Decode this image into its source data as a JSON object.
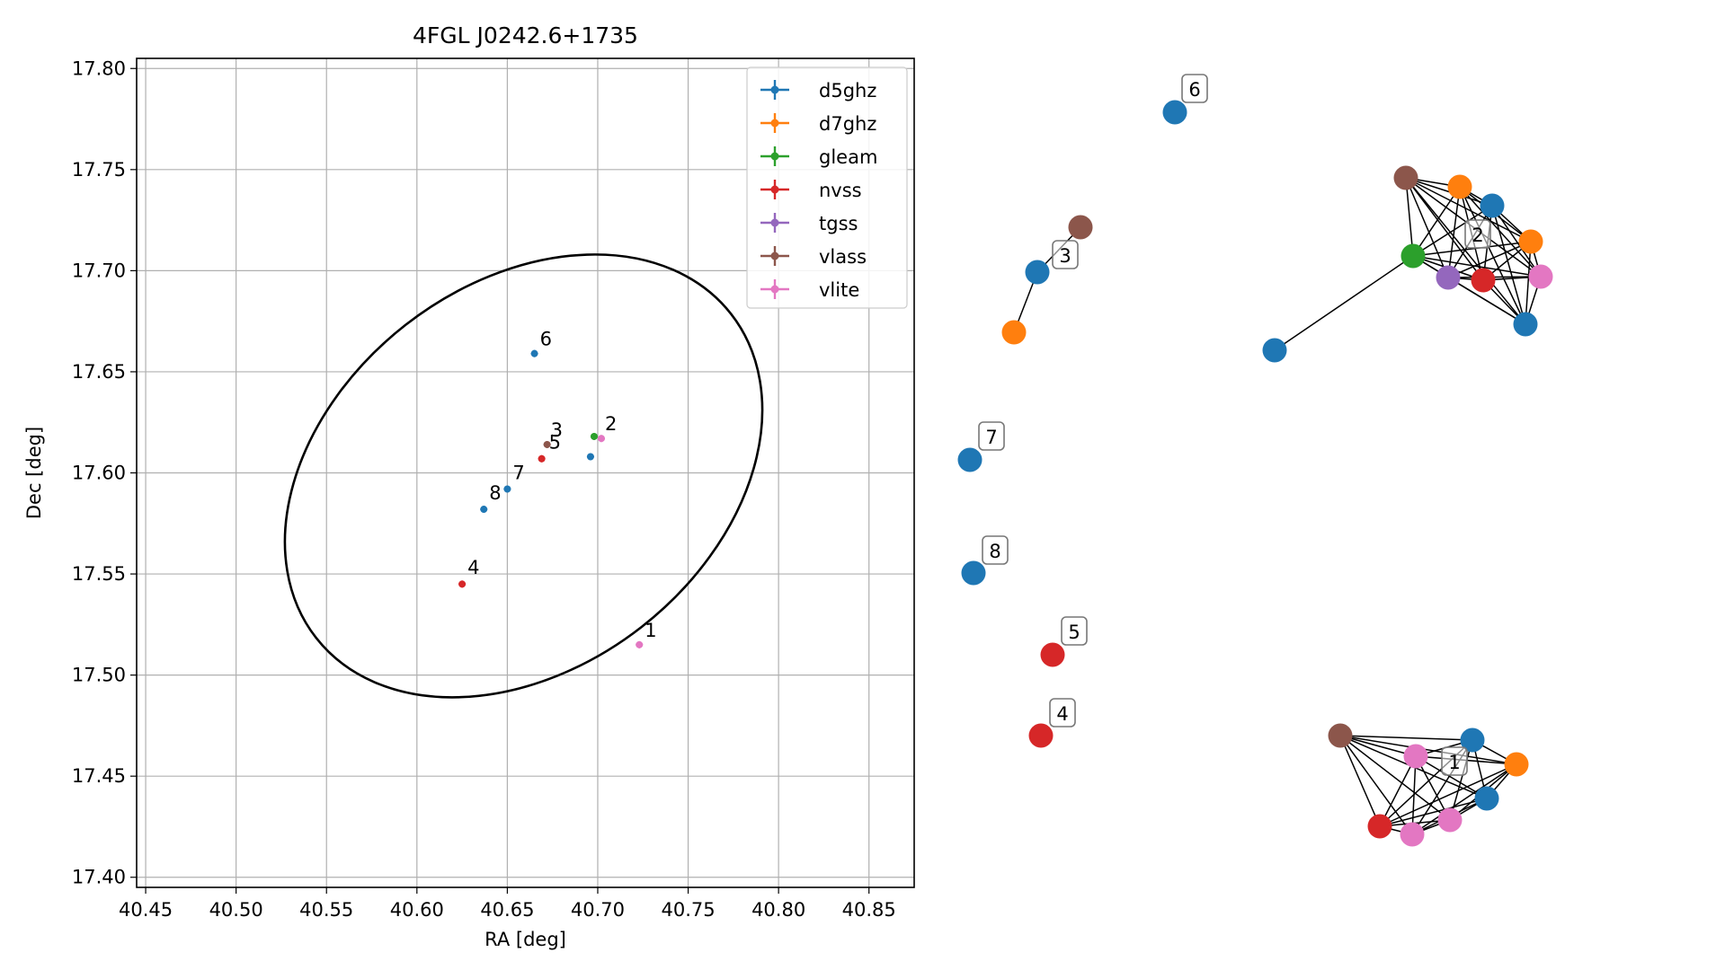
{
  "chart_data": [
    {
      "type": "scatter",
      "title": "4FGL J0242.6+1735",
      "xlabel": "RA [deg]",
      "ylabel": "Dec [deg]",
      "xlim": [
        40.445,
        40.875
      ],
      "ylim": [
        17.395,
        17.805
      ],
      "xticks": [
        "40.45",
        "40.50",
        "40.55",
        "40.60",
        "40.65",
        "40.70",
        "40.75",
        "40.80",
        "40.85"
      ],
      "yticks": [
        "17.40",
        "17.45",
        "17.50",
        "17.55",
        "17.60",
        "17.65",
        "17.70",
        "17.75",
        "17.80"
      ],
      "grid": true,
      "legend": {
        "placement": "upper right",
        "entries": [
          "d5ghz",
          "d7ghz",
          "gleam",
          "nvss",
          "tgss",
          "vlass",
          "vlite"
        ]
      },
      "colors": {
        "d5ghz": "#1f77b4",
        "d7ghz": "#ff7f0e",
        "gleam": "#2ca02c",
        "nvss": "#d62728",
        "tgss": "#9467bd",
        "vlass": "#8c564b",
        "vlite": "#e377c2"
      },
      "ellipse": {
        "ra_range": [
          40.527,
          40.791
        ],
        "dec_range": [
          17.489,
          17.708
        ]
      },
      "series": [
        {
          "name": "d5ghz",
          "points": [
            [
              40.665,
              17.659
            ],
            [
              40.696,
              17.608
            ],
            [
              40.65,
              17.592
            ],
            [
              40.637,
              17.582
            ]
          ]
        },
        {
          "name": "d7ghz",
          "points": []
        },
        {
          "name": "gleam",
          "points": [
            [
              40.698,
              17.618
            ]
          ]
        },
        {
          "name": "nvss",
          "points": [
            [
              40.669,
              17.607
            ],
            [
              40.625,
              17.545
            ]
          ]
        },
        {
          "name": "tgss",
          "points": []
        },
        {
          "name": "vlass",
          "points": [
            [
              40.672,
              17.614
            ]
          ]
        },
        {
          "name": "vlite",
          "points": [
            [
              40.702,
              17.617
            ],
            [
              40.723,
              17.515
            ]
          ]
        }
      ],
      "annotations": [
        {
          "text": "1",
          "x": 40.726,
          "y": 17.519
        },
        {
          "text": "2",
          "x": 40.704,
          "y": 17.621
        },
        {
          "text": "3",
          "x": 40.674,
          "y": 17.618
        },
        {
          "text": "5",
          "x": 40.673,
          "y": 17.612
        },
        {
          "text": "6",
          "x": 40.668,
          "y": 17.663
        },
        {
          "text": "7",
          "x": 40.653,
          "y": 17.597
        },
        {
          "text": "8",
          "x": 40.64,
          "y": 17.587
        },
        {
          "text": "4",
          "x": 40.628,
          "y": 17.55
        }
      ]
    },
    {
      "type": "graph",
      "node_colors": {
        "d5ghz": "#1f77b4",
        "d7ghz": "#ff7f0e",
        "gleam": "#2ca02c",
        "nvss": "#d62728",
        "tgss": "#9467bd",
        "vlass": "#8c564b",
        "vlite": "#e377c2"
      },
      "cluster_labels": [
        "1",
        "2",
        "3",
        "4",
        "5",
        "6",
        "7",
        "8"
      ],
      "clusters": {
        "6": [
          "d5ghz"
        ],
        "3": [
          "vlass",
          "d5ghz",
          "d7ghz"
        ],
        "2": [
          "vlass",
          "d7ghz",
          "d5ghz",
          "d7ghz",
          "gleam",
          "tgss",
          "nvss",
          "vlite",
          "d5ghz",
          "d5ghz"
        ],
        "7": [
          "d5ghz"
        ],
        "8": [
          "d5ghz"
        ],
        "5": [
          "nvss"
        ],
        "4": [
          "nvss"
        ],
        "1": [
          "vlass",
          "vlite",
          "d5ghz",
          "d7ghz",
          "d5ghz",
          "nvss",
          "vlite",
          "vlite"
        ]
      }
    }
  ]
}
